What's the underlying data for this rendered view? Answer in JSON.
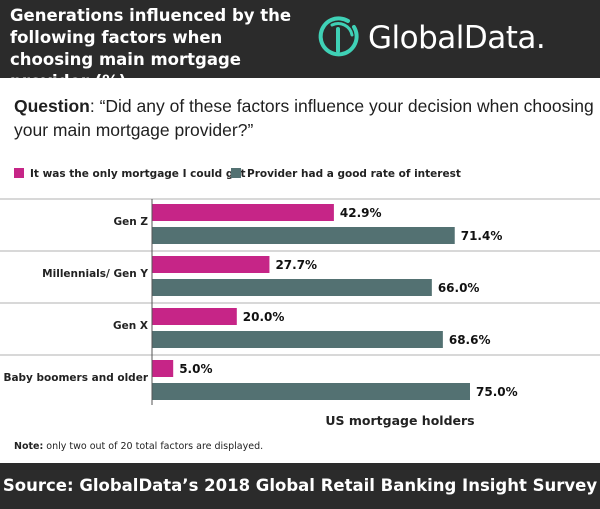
{
  "header": {
    "title": "Generations influenced by the following factors when choosing main mortgage provider (%)",
    "logo_text": "GlobalData."
  },
  "question": {
    "label": "Question",
    "text": ": “Did any of these factors influence your decision when choosing your main mortgage provider?”"
  },
  "colors": {
    "series1": "#c62587",
    "series2": "#537172",
    "header_bg": "#2b2b2b",
    "logo_accent": "#3fd1b6"
  },
  "chart_data": {
    "type": "bar",
    "orientation": "horizontal",
    "categories": [
      "Gen Z",
      "Millennials/ Gen Y",
      "Gen X",
      "Baby boomers and older"
    ],
    "series": [
      {
        "name": "It was the only mortgage I could get",
        "values": [
          42.9,
          27.7,
          20.0,
          5.0
        ],
        "labels": [
          "42.9%",
          "27.7%",
          "20.0%",
          "5.0%"
        ]
      },
      {
        "name": "Provider had a good rate of interest",
        "values": [
          71.4,
          66.0,
          68.6,
          75.0
        ],
        "labels": [
          "71.4%",
          "66.0%",
          "68.6%",
          "75.0%"
        ]
      }
    ],
    "xlabel": "US mortgage holders",
    "xlim": [
      0,
      100
    ],
    "grid": false,
    "legend": "top-left"
  },
  "note": {
    "label": "Note:",
    "text": " only two out of 20 total factors are displayed."
  },
  "footer": {
    "source": "Source: GlobalData’s 2018 Global Retail Banking Insight Survey"
  }
}
